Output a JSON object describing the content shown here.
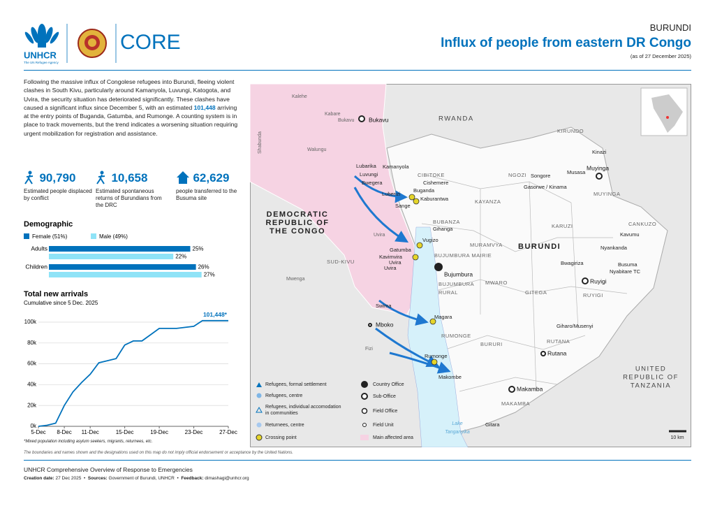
{
  "header": {
    "logo": "UNHCR",
    "tagline": "The UN Refugee Agency",
    "core": "CORE",
    "country": "BURUNDI",
    "title": "Influx of people from eastern DR Congo",
    "date": "(as of 27 December 2025)"
  },
  "intro": {
    "before": "Following the massive influx of Congolese refugees into Burundi, fleeing violent clashes in South Kivu, particularly around Kamanyola, Luvungi, Katogota, and Uvira, the security situation has deteriorated significantly. These clashes have caused a significant influx since December 5, with an estimated ",
    "highlight": "101,448",
    "after": " arriving at the entry points of Buganda, Gatumba, and Rumonge. A counting system is in place to track movements, but the trend indicates a worsening situation requiring urgent mobilization for registration and assistance."
  },
  "stats": [
    {
      "value": "90,790",
      "description": "Estimated people displaced by conflict"
    },
    {
      "value": "10,658",
      "description": "Estimated spontaneous returns of Burundians from the DRC"
    },
    {
      "value": "62,629",
      "description": "people transferred to the Busuma site"
    }
  ],
  "chart_data": [
    {
      "type": "bar",
      "title": "Demographic",
      "orientation": "horizontal",
      "categories": [
        "Adults",
        "Children"
      ],
      "xlim": [
        0,
        30
      ],
      "series": [
        {
          "name": "Female (51%)",
          "color": "#0072bc",
          "values": [
            25,
            26
          ],
          "value_labels": [
            "25%",
            "26%"
          ]
        },
        {
          "name": "Male (49%)",
          "color": "#8fe3f7",
          "values": [
            22,
            27
          ],
          "value_labels": [
            "22%",
            "27%"
          ]
        }
      ]
    },
    {
      "type": "line",
      "title": "Total new arrivals",
      "subtitle": "Cumulative since 5 Dec. 2025",
      "color": "#0072bc",
      "grid": true,
      "categories": [
        "5-Dec",
        null,
        null,
        "8-Dec",
        null,
        null,
        "11-Dec",
        null,
        null,
        null,
        "15-Dec",
        null,
        null,
        null,
        "19-Dec",
        null,
        null,
        null,
        "23-Dec",
        null,
        null,
        null,
        "27-Dec"
      ],
      "values": [
        0,
        1000,
        3000,
        20000,
        33000,
        42000,
        50000,
        61000,
        63000,
        65000,
        78000,
        82000,
        82000,
        88000,
        94000,
        94000,
        94000,
        95000,
        96000,
        101448,
        101448,
        101448,
        101448
      ],
      "value_labels": [
        null,
        null,
        null,
        null,
        null,
        null,
        null,
        null,
        null,
        null,
        null,
        null,
        null,
        null,
        null,
        null,
        null,
        null,
        null,
        null,
        null,
        null,
        "101,448*"
      ],
      "ylim": [
        0,
        104000
      ],
      "yticks": [
        {
          "value": 0,
          "label": "0k"
        },
        {
          "value": 20000,
          "label": "20k"
        },
        {
          "value": 40000,
          "label": "40k"
        },
        {
          "value": 60000,
          "label": "60k"
        },
        {
          "value": 80000,
          "label": "80k"
        },
        {
          "value": 100000,
          "label": "100k"
        }
      ],
      "footnote": "*Mixed population including asylum seekers, migrants, returnees, etc."
    }
  ],
  "map": {
    "labels": [
      {
        "text": "Kalehe"
      },
      {
        "text": "Kabare"
      },
      {
        "text": "Bukavu"
      },
      {
        "text": "Bukavu"
      },
      {
        "text": "RWANDA"
      },
      {
        "text": "KIRUNDO"
      },
      {
        "text": "Kinazi"
      },
      {
        "text": "Shabunda"
      },
      {
        "text": "Walungu"
      },
      {
        "text": "Lubarika"
      },
      {
        "text": "Kamanyola"
      },
      {
        "text": "Luvungi"
      },
      {
        "text": "Bwegera"
      },
      {
        "text": "CIBITOKE"
      },
      {
        "text": "Cishemere"
      },
      {
        "text": "Buganda"
      },
      {
        "text": "Kaburantwa"
      },
      {
        "text": "Luberizi"
      },
      {
        "text": "Sange"
      },
      {
        "text": "NGOZI"
      },
      {
        "text": "Songore"
      },
      {
        "text": "Musasa"
      },
      {
        "text": "Muyinga"
      },
      {
        "text": "Gasorwe / Kinama"
      },
      {
        "text": "MUYINGA"
      },
      {
        "text": "KAYANZA"
      },
      {
        "lines": [
          "DEMOCRATIC",
          "REPUBLIC OF",
          "THE CONGO"
        ]
      },
      {
        "text": "BUBANZA"
      },
      {
        "text": "Gihanga"
      },
      {
        "text": "KARUZI"
      },
      {
        "text": "CANKUZO"
      },
      {
        "text": "Kavumu"
      },
      {
        "text": "Uvira"
      },
      {
        "text": "Vugizo"
      },
      {
        "text": "Gatumba"
      },
      {
        "text": "Kavimvira"
      },
      {
        "text": "Uvira"
      },
      {
        "text": "Uvira"
      },
      {
        "text": "MURAMVYA"
      },
      {
        "text": "BURUNDI"
      },
      {
        "text": "BUJUMBURA MAIRIE"
      },
      {
        "text": "Bujumbura"
      },
      {
        "text": "Nyankanda"
      },
      {
        "text": "Bwagiriza"
      },
      {
        "text": "Busuma"
      },
      {
        "text": "Nyabitare TC"
      },
      {
        "text": "SUD-KIVU"
      },
      {
        "text": "Mwenga"
      },
      {
        "lines": [
          "BUJUMBURA",
          "RURAL"
        ]
      },
      {
        "text": "MWARO"
      },
      {
        "text": "GITEGA"
      },
      {
        "text": "Ruyigi"
      },
      {
        "text": "RUYIGI"
      },
      {
        "text": "Swima"
      },
      {
        "text": "Magara"
      },
      {
        "text": "Mboko"
      },
      {
        "text": "RUMONGE"
      },
      {
        "text": "BURURI"
      },
      {
        "text": "Giharo/Musenyi"
      },
      {
        "text": "RUTANA"
      },
      {
        "text": "Rutana"
      },
      {
        "text": "Fizi"
      },
      {
        "text": "Rumonge"
      },
      {
        "lines": [
          "UNITED",
          "REPUBLIC OF",
          "TANZANIA"
        ]
      },
      {
        "text": "Makombe"
      },
      {
        "text": "Makamba"
      },
      {
        "text": "MAKAMBA"
      },
      {
        "text": "Gitara"
      },
      {
        "lines": [
          "Lake",
          "Tanganyika"
        ]
      }
    ],
    "legend": [
      "Refugees, formal settlement",
      "Refugees, centre",
      "Refugees, individual accomodation in communities",
      "Returnees, centre",
      "Crossing point",
      "Country Office",
      "Sub-Office",
      "Field Office",
      "Field Unit",
      "Main affected area"
    ],
    "scale": "10 km"
  },
  "disclaimer": "The boundaries and names shown and the designations used on this map do not imply official endorsement or acceptance by the United Nations.",
  "footer": {
    "title": "UNHCR Comprehensive Overview of Response to Emergencies",
    "creation_label": "Creation date:",
    "creation": "27 Dec 2025",
    "sources_label": "Sources:",
    "sources": "Government of Burundi, UNHCR",
    "feedback_label": "Feedback:",
    "feedback": "dimashagi@unhcr.org"
  }
}
